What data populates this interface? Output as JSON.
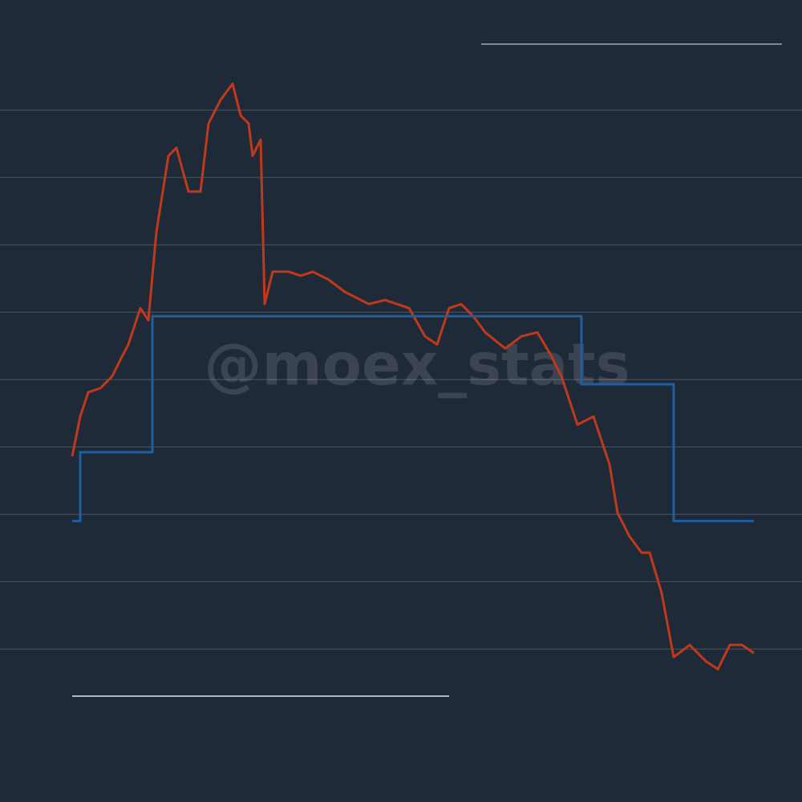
{
  "chart_data": {
    "type": "line",
    "annotation": "@moex_stats",
    "xlim": [
      0,
      85
    ],
    "ylim": [
      0.3,
      9.8
    ],
    "yticks": [
      1,
      2,
      3,
      4,
      5,
      6,
      7,
      8,
      9
    ],
    "grid": true,
    "series": [
      {
        "color": "#c0391b",
        "step": false,
        "x": [
          0,
          1,
          2,
          3.5,
          5,
          6,
          7,
          8.5,
          9.5,
          10.5,
          12,
          13,
          14.5,
          16,
          17,
          18.5,
          20,
          21,
          22,
          22.5,
          23.5,
          24,
          25,
          27,
          28.5,
          30,
          32,
          34,
          37,
          39,
          42,
          44,
          45.5,
          47,
          48.5,
          50,
          51.5,
          54,
          56,
          58,
          59.5,
          61,
          63,
          65,
          67,
          68,
          69.5,
          71,
          72,
          73.5,
          75,
          77,
          79,
          80.5,
          82,
          83.5,
          85
        ],
        "values": [
          3.86,
          4.45,
          4.81,
          4.87,
          5.05,
          5.29,
          5.52,
          6.06,
          5.88,
          7.19,
          8.32,
          8.44,
          7.79,
          7.79,
          8.8,
          9.15,
          9.39,
          8.92,
          8.8,
          8.32,
          8.56,
          6.12,
          6.6,
          6.6,
          6.54,
          6.6,
          6.48,
          6.3,
          6.12,
          6.18,
          6.06,
          5.64,
          5.52,
          6.06,
          6.12,
          5.94,
          5.7,
          5.46,
          5.64,
          5.7,
          5.4,
          5.05,
          4.33,
          4.45,
          3.74,
          3.02,
          2.67,
          2.43,
          2.43,
          1.83,
          0.88,
          1.06,
          0.82,
          0.7,
          1.06,
          1.06,
          0.94
        ]
      },
      {
        "color": "#1f5f9e",
        "step": true,
        "x": [
          0,
          1,
          10,
          63.5,
          75,
          85
        ],
        "values": [
          2.9,
          3.92,
          5.94,
          4.93,
          2.9,
          2.9
        ]
      }
    ]
  }
}
